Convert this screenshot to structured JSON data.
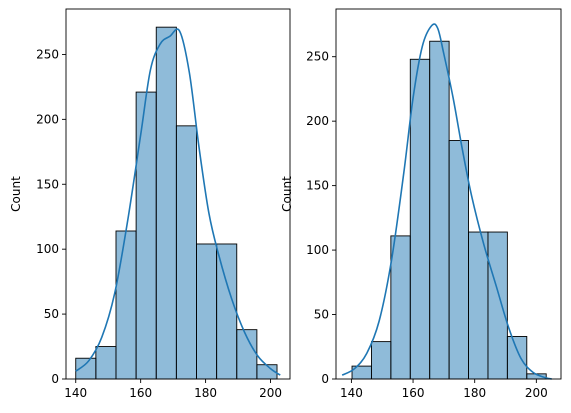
{
  "chart_data": [
    {
      "type": "bar",
      "subtype": "histogram-with-kde",
      "title": "",
      "xlabel": "",
      "ylabel": "Count",
      "xlim": [
        137,
        206
      ],
      "ylim": [
        0,
        285
      ],
      "xticks": [
        140,
        160,
        180,
        200
      ],
      "yticks": [
        0,
        50,
        100,
        150,
        200,
        250
      ],
      "grid": false,
      "bar_color": "#1f77b4",
      "bins": [
        {
          "x0": 140.0,
          "x1": 146.2,
          "count": 16
        },
        {
          "x0": 146.2,
          "x1": 152.4,
          "count": 25
        },
        {
          "x0": 152.4,
          "x1": 158.6,
          "count": 114
        },
        {
          "x0": 158.6,
          "x1": 164.8,
          "count": 221
        },
        {
          "x0": 164.8,
          "x1": 171.0,
          "count": 271
        },
        {
          "x0": 171.0,
          "x1": 177.2,
          "count": 195
        },
        {
          "x0": 177.2,
          "x1": 183.4,
          "count": 104
        },
        {
          "x0": 183.4,
          "x1": 189.6,
          "count": 104
        },
        {
          "x0": 189.6,
          "x1": 195.8,
          "count": 38
        },
        {
          "x0": 195.8,
          "x1": 202.0,
          "count": 11
        }
      ],
      "kde": {
        "x": [
          140,
          144,
          148,
          152,
          156,
          160,
          163,
          166,
          169,
          172,
          175,
          178,
          181,
          184,
          188,
          192,
          196,
          200,
          203
        ],
        "y": [
          6,
          14,
          32,
          66,
          122,
          188,
          238,
          258,
          264,
          268,
          236,
          178,
          128,
          96,
          62,
          36,
          18,
          8,
          3
        ]
      }
    },
    {
      "type": "bar",
      "subtype": "histogram-with-kde",
      "title": "",
      "xlabel": "",
      "ylabel": "Count",
      "xlim": [
        135,
        208
      ],
      "ylim": [
        0,
        287
      ],
      "xticks": [
        140,
        160,
        180,
        200
      ],
      "yticks": [
        0,
        50,
        100,
        150,
        200,
        250
      ],
      "grid": false,
      "bar_color": "#1f77b4",
      "bins": [
        {
          "x0": 140.2,
          "x1": 146.5,
          "count": 10
        },
        {
          "x0": 146.5,
          "x1": 152.8,
          "count": 29
        },
        {
          "x0": 152.8,
          "x1": 159.1,
          "count": 111
        },
        {
          "x0": 159.1,
          "x1": 165.4,
          "count": 248
        },
        {
          "x0": 165.4,
          "x1": 171.7,
          "count": 262
        },
        {
          "x0": 171.7,
          "x1": 178.0,
          "count": 185
        },
        {
          "x0": 178.0,
          "x1": 184.3,
          "count": 114
        },
        {
          "x0": 184.3,
          "x1": 190.6,
          "count": 114
        },
        {
          "x0": 190.6,
          "x1": 196.9,
          "count": 33
        },
        {
          "x0": 196.9,
          "x1": 203.2,
          "count": 4
        }
      ],
      "kde": {
        "x": [
          137,
          141,
          145,
          149,
          153,
          157,
          160,
          163,
          166,
          168,
          170,
          173,
          176,
          179,
          183,
          187,
          191,
          195,
          199,
          203,
          205
        ],
        "y": [
          3,
          8,
          20,
          45,
          92,
          160,
          218,
          258,
          274,
          272,
          252,
          218,
          178,
          142,
          104,
          72,
          40,
          16,
          5,
          1,
          0
        ]
      }
    }
  ]
}
